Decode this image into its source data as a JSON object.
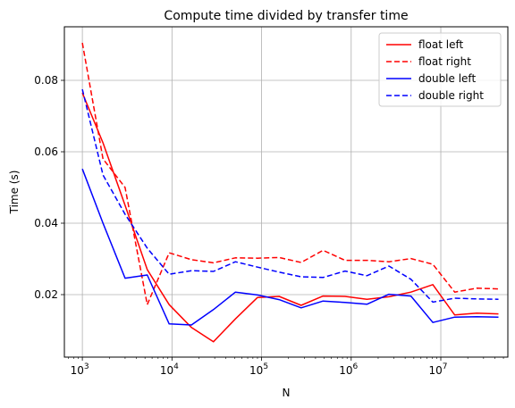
{
  "chart_data": {
    "type": "line",
    "title": "Compute time divided by transfer time",
    "xlabel": "N",
    "ylabel": "Time (s)",
    "xscale": "log",
    "xlim": [
      630,
      56000000
    ],
    "ylim": [
      0.0025,
      0.095
    ],
    "grid": true,
    "legend_position": "top-right",
    "x_ticks": [
      {
        "value": 1000,
        "base": "10",
        "exp": "3"
      },
      {
        "value": 10000,
        "base": "10",
        "exp": "4"
      },
      {
        "value": 100000,
        "base": "10",
        "exp": "5"
      },
      {
        "value": 1000000,
        "base": "10",
        "exp": "6"
      },
      {
        "value": 10000000,
        "base": "10",
        "exp": "7"
      }
    ],
    "y_ticks": [
      {
        "value": 0.02,
        "label": "0.02"
      },
      {
        "value": 0.04,
        "label": "0.04"
      },
      {
        "value": 0.06,
        "label": "0.06"
      },
      {
        "value": 0.08,
        "label": "0.08"
      }
    ],
    "series": [
      {
        "name": "float left",
        "color": "#ff0000",
        "dash": "solid",
        "points": [
          [
            1000,
            0.0765
          ],
          [
            1700,
            0.0625
          ],
          [
            3000,
            0.045
          ],
          [
            5300,
            0.027
          ],
          [
            9300,
            0.0172
          ],
          [
            16500,
            0.0108
          ],
          [
            29000,
            0.0068
          ],
          [
            51000,
            0.0132
          ],
          [
            90000,
            0.0192
          ],
          [
            157000,
            0.0195
          ],
          [
            276000,
            0.017
          ],
          [
            485000,
            0.0196
          ],
          [
            853000,
            0.0195
          ],
          [
            1500000,
            0.0187
          ],
          [
            2640000,
            0.0194
          ],
          [
            4640000,
            0.0207
          ],
          [
            8150000,
            0.0228
          ],
          [
            14300000,
            0.0143
          ],
          [
            25200000,
            0.0148
          ],
          [
            44000000,
            0.0146
          ]
        ]
      },
      {
        "name": "float right",
        "color": "#ff0000",
        "dash": "dashed",
        "points": [
          [
            1000,
            0.0905
          ],
          [
            1700,
            0.058
          ],
          [
            3000,
            0.05
          ],
          [
            5300,
            0.0172
          ],
          [
            9300,
            0.0317
          ],
          [
            16500,
            0.0298
          ],
          [
            29000,
            0.0289
          ],
          [
            51000,
            0.0303
          ],
          [
            90000,
            0.0302
          ],
          [
            157000,
            0.0304
          ],
          [
            276000,
            0.029
          ],
          [
            485000,
            0.0324
          ],
          [
            853000,
            0.0296
          ],
          [
            1500000,
            0.0296
          ],
          [
            2640000,
            0.0292
          ],
          [
            4640000,
            0.0301
          ],
          [
            8150000,
            0.0285
          ],
          [
            14300000,
            0.0207
          ],
          [
            25200000,
            0.0218
          ],
          [
            44000000,
            0.0216
          ]
        ]
      },
      {
        "name": "double left",
        "color": "#0000ff",
        "dash": "solid",
        "points": [
          [
            1000,
            0.0552
          ],
          [
            1700,
            0.04
          ],
          [
            3000,
            0.0246
          ],
          [
            5300,
            0.0255
          ],
          [
            9300,
            0.0118
          ],
          [
            16500,
            0.0115
          ],
          [
            29000,
            0.0158
          ],
          [
            51000,
            0.0207
          ],
          [
            90000,
            0.0199
          ],
          [
            157000,
            0.0186
          ],
          [
            276000,
            0.0163
          ],
          [
            485000,
            0.0182
          ],
          [
            853000,
            0.0178
          ],
          [
            1500000,
            0.0173
          ],
          [
            2640000,
            0.0201
          ],
          [
            4640000,
            0.0196
          ],
          [
            8150000,
            0.0122
          ],
          [
            14300000,
            0.0137
          ],
          [
            25200000,
            0.0138
          ],
          [
            44000000,
            0.0137
          ]
        ]
      },
      {
        "name": "double right",
        "color": "#0000ff",
        "dash": "dashed",
        "points": [
          [
            1000,
            0.0775
          ],
          [
            1700,
            0.0535
          ],
          [
            3000,
            0.0425
          ],
          [
            5300,
            0.033
          ],
          [
            9300,
            0.0257
          ],
          [
            16500,
            0.0267
          ],
          [
            29000,
            0.0265
          ],
          [
            51000,
            0.0292
          ],
          [
            90000,
            0.0277
          ],
          [
            157000,
            0.0263
          ],
          [
            276000,
            0.025
          ],
          [
            485000,
            0.0248
          ],
          [
            853000,
            0.0266
          ],
          [
            1500000,
            0.0253
          ],
          [
            2640000,
            0.028
          ],
          [
            4640000,
            0.0243
          ],
          [
            8150000,
            0.0179
          ],
          [
            14300000,
            0.019
          ],
          [
            25200000,
            0.0188
          ],
          [
            44000000,
            0.0187
          ]
        ]
      }
    ]
  }
}
